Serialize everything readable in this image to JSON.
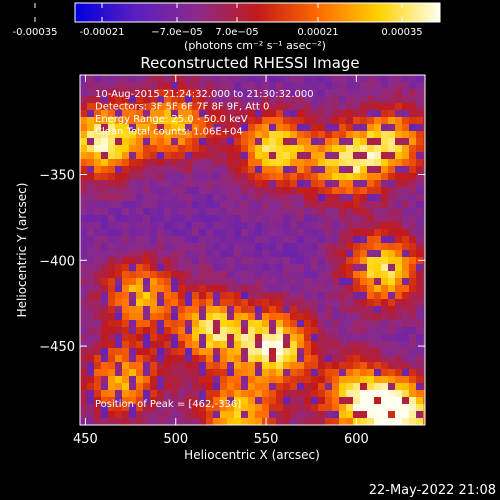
{
  "colorbar": {
    "ticks": [
      "-0.00035",
      "-0.00021",
      "−7.0e−05",
      "7.0e−05",
      "0.00021",
      "0.00035"
    ],
    "unit_label": "(photons cm⁻² s⁻¹ asec⁻²)",
    "colors": [
      "#0000e0",
      "#5a1fbf",
      "#8a2a8a",
      "#c21a1a",
      "#ff6a00",
      "#ffd200",
      "#fffff0"
    ]
  },
  "chart_data": {
    "type": "heatmap",
    "title": "Reconstructed RHESSI Image",
    "xlabel": "Heliocentric X (arcsec)",
    "ylabel": "Heliocentric Y (arcsec)",
    "xlim": [
      447,
      638
    ],
    "ylim": [
      -496,
      -292
    ],
    "xticks": [
      450,
      500,
      550,
      600
    ],
    "yticks": [
      -350,
      -400,
      -450
    ],
    "annotations": [
      "10-Aug-2015 21:24:32.000 to 21:30:32.000",
      "Detectors: 3F 5F 6F 7F 8F 9F, Att 0",
      "Energy Range: 25.0 - 50.0 keV",
      "Clean    Total counts: 1.06E+04"
    ],
    "peak_label": "Position of Peak = [462,-336]",
    "peak": [
      462,
      -336
    ],
    "value_range": [
      -0.00035,
      0.00035
    ],
    "bright_regions": [
      {
        "x": 460,
        "y": -330,
        "level": 0.95
      },
      {
        "x": 500,
        "y": -320,
        "level": 0.7
      },
      {
        "x": 555,
        "y": -335,
        "level": 0.85
      },
      {
        "x": 595,
        "y": -345,
        "level": 0.75
      },
      {
        "x": 620,
        "y": -330,
        "level": 0.7
      },
      {
        "x": 615,
        "y": -405,
        "level": 0.85
      },
      {
        "x": 555,
        "y": -450,
        "level": 0.95
      },
      {
        "x": 520,
        "y": -440,
        "level": 0.8
      },
      {
        "x": 480,
        "y": -420,
        "level": 0.7
      },
      {
        "x": 600,
        "y": -480,
        "level": 0.8
      },
      {
        "x": 625,
        "y": -490,
        "level": 0.95
      },
      {
        "x": 535,
        "y": -490,
        "level": 0.75
      },
      {
        "x": 470,
        "y": -470,
        "level": 0.7
      }
    ]
  },
  "footer": {
    "timestamp": "22-May-2022 21:08"
  }
}
